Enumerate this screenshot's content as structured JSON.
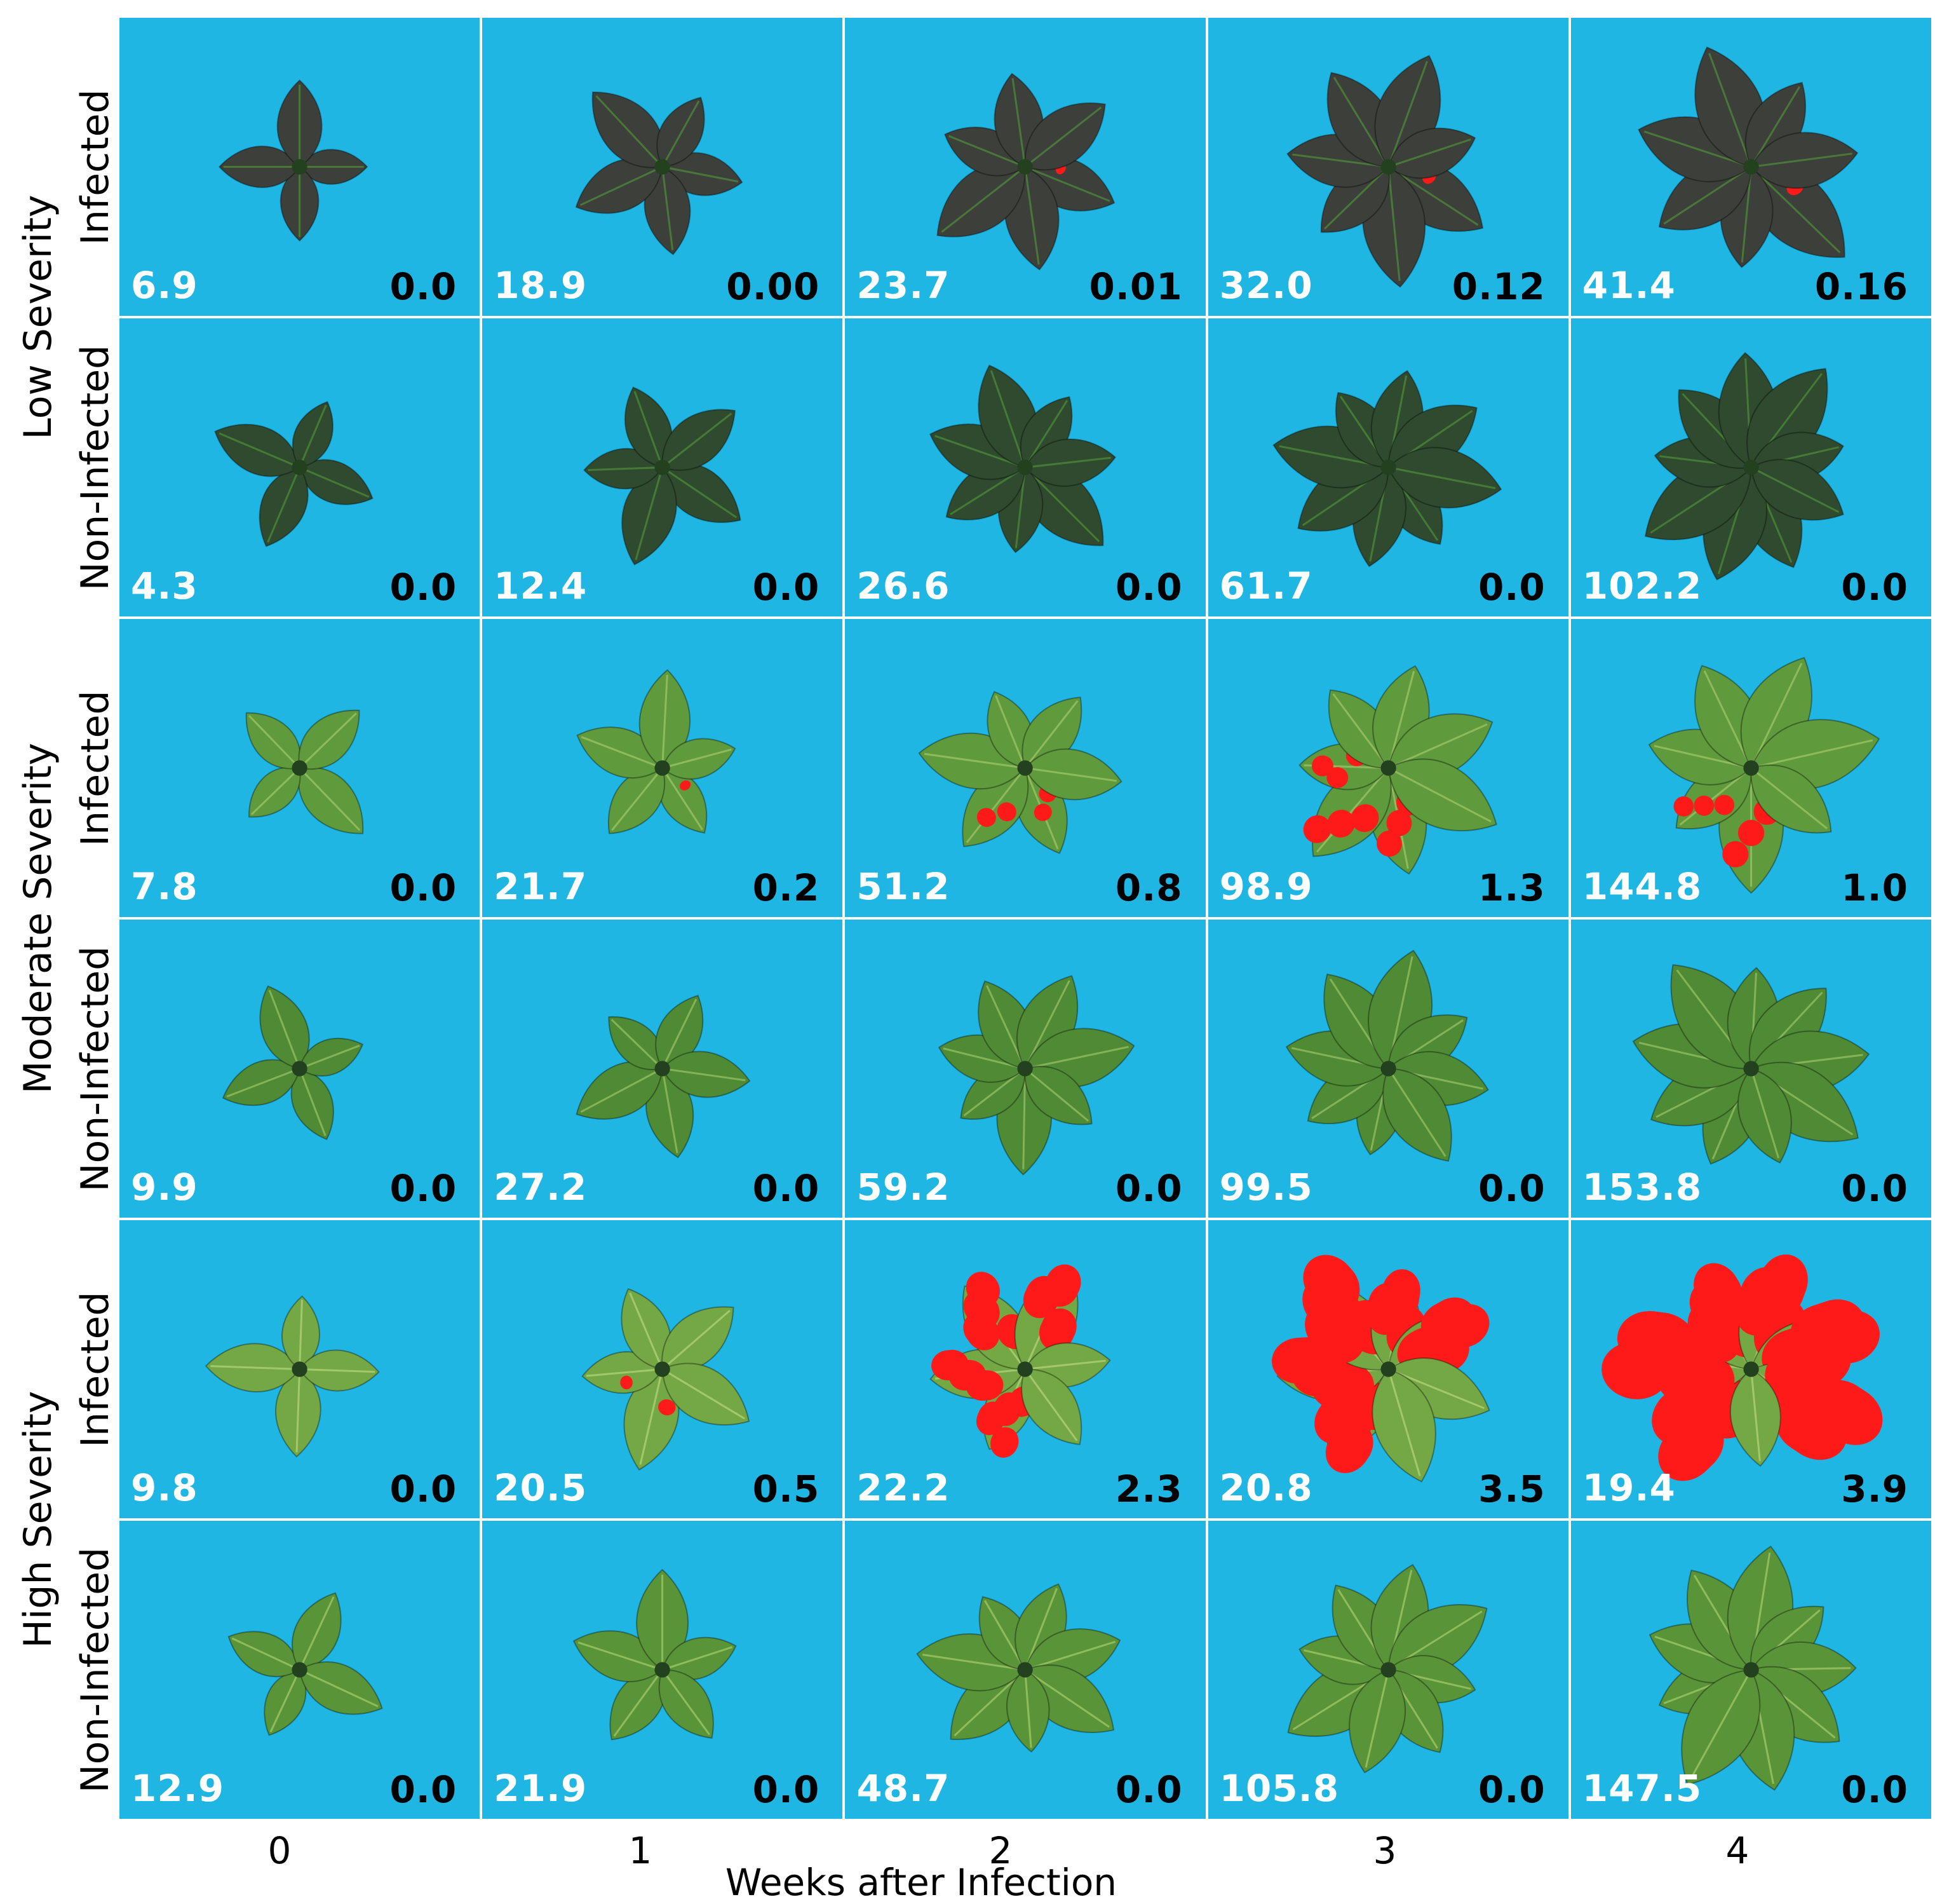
{
  "figure": {
    "x_axis_title": "Weeks after Infection",
    "weeks": [
      "0",
      "1",
      "2",
      "3",
      "4"
    ],
    "groups": [
      {
        "label": "Low Severity",
        "rows": [
          "Infected",
          "Non-Infected"
        ]
      },
      {
        "label": "Moderate Severity",
        "rows": [
          "Infected",
          "Non-Infected"
        ]
      },
      {
        "label": "High Severity",
        "rows": [
          "Infected",
          "Non-Infected"
        ]
      }
    ],
    "rows": [
      {
        "group": "Low Severity",
        "status": "Infected",
        "leaf_color": "#3c3f3a",
        "vein_color": "#4f8f3a",
        "cells": [
          {
            "white": "6.9",
            "black": "0.0",
            "disease": 0.0
          },
          {
            "white": "18.9",
            "black": "0.00",
            "disease": 0.0
          },
          {
            "white": "23.7",
            "black": "0.01",
            "disease": 0.01
          },
          {
            "white": "32.0",
            "black": "0.12",
            "disease": 0.12
          },
          {
            "white": "41.4",
            "black": "0.16",
            "disease": 0.16
          }
        ]
      },
      {
        "group": "Low Severity",
        "status": "Non-Infected",
        "leaf_color": "#2f4a2e",
        "vein_color": "#4f8f3a",
        "cells": [
          {
            "white": "4.3",
            "black": "0.0",
            "disease": 0.0
          },
          {
            "white": "12.4",
            "black": "0.0",
            "disease": 0.0
          },
          {
            "white": "26.6",
            "black": "0.0",
            "disease": 0.0
          },
          {
            "white": "61.7",
            "black": "0.0",
            "disease": 0.0
          },
          {
            "white": "102.2",
            "black": "0.0",
            "disease": 0.0
          }
        ]
      },
      {
        "group": "Moderate Severity",
        "status": "Infected",
        "leaf_color": "#5f9a3c",
        "vein_color": "#a4c86a",
        "cells": [
          {
            "white": "7.8",
            "black": "0.0",
            "disease": 0.0
          },
          {
            "white": "21.7",
            "black": "0.2",
            "disease": 0.2
          },
          {
            "white": "51.2",
            "black": "0.8",
            "disease": 0.8
          },
          {
            "white": "98.9",
            "black": "1.3",
            "disease": 1.3
          },
          {
            "white": "144.8",
            "black": "1.0",
            "disease": 1.0
          }
        ]
      },
      {
        "group": "Moderate Severity",
        "status": "Non-Infected",
        "leaf_color": "#4f8a35",
        "vein_color": "#9cc465",
        "cells": [
          {
            "white": "9.9",
            "black": "0.0",
            "disease": 0.0
          },
          {
            "white": "27.2",
            "black": "0.0",
            "disease": 0.0
          },
          {
            "white": "59.2",
            "black": "0.0",
            "disease": 0.0
          },
          {
            "white": "99.5",
            "black": "0.0",
            "disease": 0.0
          },
          {
            "white": "153.8",
            "black": "0.0",
            "disease": 0.0
          }
        ]
      },
      {
        "group": "High Severity",
        "status": "Infected",
        "leaf_color": "#74a845",
        "vein_color": "#b8d67a",
        "cells": [
          {
            "white": "9.8",
            "black": "0.0",
            "disease": 0.0
          },
          {
            "white": "20.5",
            "black": "0.5",
            "disease": 0.5
          },
          {
            "white": "22.2",
            "black": "2.3",
            "disease": 2.3
          },
          {
            "white": "20.8",
            "black": "3.5",
            "disease": 3.5
          },
          {
            "white": "19.4",
            "black": "3.9",
            "disease": 3.9
          }
        ]
      },
      {
        "group": "High Severity",
        "status": "Non-Infected",
        "leaf_color": "#5a9438",
        "vein_color": "#a8cc6c",
        "cells": [
          {
            "white": "12.9",
            "black": "0.0",
            "disease": 0.0
          },
          {
            "white": "21.9",
            "black": "0.0",
            "disease": 0.0
          },
          {
            "white": "48.7",
            "black": "0.0",
            "disease": 0.0
          },
          {
            "white": "105.8",
            "black": "0.0",
            "disease": 0.0
          },
          {
            "white": "147.5",
            "black": "0.0",
            "disease": 0.0
          }
        ]
      }
    ],
    "colors": {
      "background": "#1fb6e4",
      "lesion": "#ff1a1a"
    }
  }
}
